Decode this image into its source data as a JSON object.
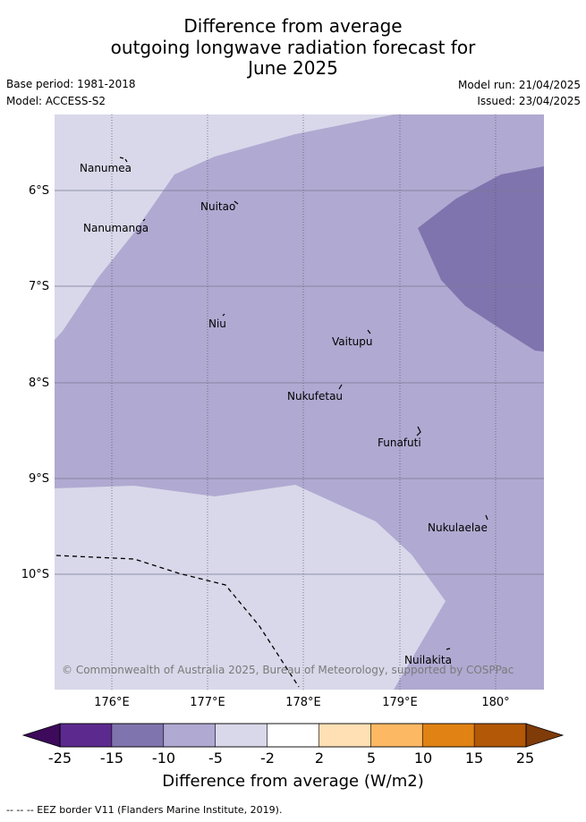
{
  "title": {
    "line1": "Difference from average",
    "line2": "outgoing longwave radiation forecast for",
    "line3": "June 2025"
  },
  "meta": {
    "base_period": "Base period: 1981-2018",
    "model": "Model: ACCESS-S2",
    "model_run": "Model run: 21/04/2025",
    "issued": "Issued: 23/04/2025"
  },
  "map": {
    "lat_labels": [
      "6°S",
      "7°S",
      "8°S",
      "9°S",
      "10°S"
    ],
    "lon_labels": [
      "176°E",
      "177°E",
      "178°E",
      "179°E",
      "180°"
    ],
    "islands": [
      {
        "name": "Nanumea",
        "lon": 176.2,
        "lat": -5.68
      },
      {
        "name": "Nuitao",
        "lon": 177.3,
        "lat": -6.11
      },
      {
        "name": "Nanumanga",
        "lon": 176.35,
        "lat": -6.3
      },
      {
        "name": "Niu",
        "lon": 177.15,
        "lat": -7.29
      },
      {
        "name": "Vaitupu",
        "lon": 178.68,
        "lat": -7.48
      },
      {
        "name": "Nukufetau",
        "lon": 178.38,
        "lat": -8.03
      },
      {
        "name": "Funafuti",
        "lon": 179.2,
        "lat": -8.52
      },
      {
        "name": "Nukulaelae",
        "lon": 179.85,
        "lat": -9.38
      },
      {
        "name": "Nuilakita",
        "lon": 179.52,
        "lat": -10.79
      }
    ],
    "fill_colors": {
      "-5_to_-2": "#d8d8ea",
      "-10_to_-5": "#b0a9d1",
      "-15_to_-10": "#8074ae"
    },
    "copyright": "© Commonwealth of Australia 2025, Bureau of Meteorology, supported by COSPPac"
  },
  "colorbar": {
    "labels": [
      "-25",
      "-15",
      "-10",
      "-5",
      "-2",
      "2",
      "5",
      "10",
      "15",
      "25"
    ],
    "colors": [
      "#3d0a5c",
      "#5c2a8e",
      "#8074ae",
      "#b0a9d1",
      "#d8d8ea",
      "#ffffff",
      "#fee0b4",
      "#fdb863",
      "#e08214",
      "#b35806",
      "#7f3b08"
    ],
    "title": "Difference from average (W/m2)"
  },
  "footer": "-- -- -- EEZ border V11 (Flanders Marine Institute, 2019)."
}
